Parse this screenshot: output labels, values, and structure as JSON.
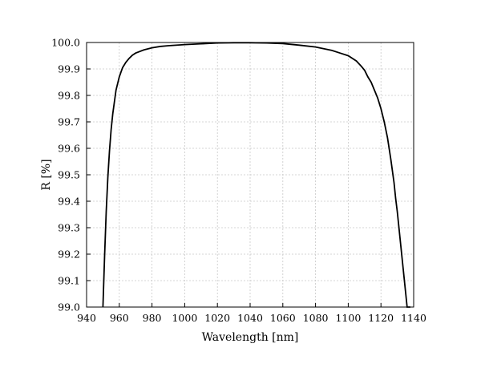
{
  "chart_data": {
    "type": "line",
    "title": "",
    "xlabel": "Wavelength [nm]",
    "ylabel": "R [%]",
    "xlim": [
      940,
      1140
    ],
    "ylim": [
      99.0,
      100.0
    ],
    "grid": true,
    "x_ticks": [
      "940",
      "960",
      "980",
      "1000",
      "1020",
      "1040",
      "1060",
      "1080",
      "1100",
      "1120",
      "1140"
    ],
    "y_ticks": [
      "99.0",
      "99.1",
      "99.2",
      "99.3",
      "99.4",
      "99.5",
      "99.6",
      "99.7",
      "99.8",
      "99.9",
      "100.0"
    ],
    "series": [
      {
        "x": [
          950,
          951,
          952,
          953,
          954,
          955,
          956,
          958,
          960,
          962,
          964,
          966,
          968,
          970,
          975,
          980,
          985,
          990,
          1000,
          1010,
          1020,
          1030,
          1040,
          1050,
          1060,
          1070,
          1080,
          1090,
          1095,
          1100,
          1105,
          1108,
          1110,
          1112,
          1114,
          1116,
          1118,
          1120,
          1122,
          1124,
          1126,
          1128,
          1129,
          1130,
          1131,
          1132,
          1133,
          1134,
          1135,
          1136,
          1137,
          1138
        ],
        "y": [
          99.0,
          99.19,
          99.36,
          99.49,
          99.59,
          99.67,
          99.73,
          99.82,
          99.87,
          99.905,
          99.925,
          99.94,
          99.952,
          99.96,
          99.972,
          99.98,
          99.985,
          99.988,
          99.992,
          99.995,
          99.998,
          99.999,
          99.999,
          99.998,
          99.996,
          99.99,
          99.983,
          99.97,
          99.96,
          99.95,
          99.93,
          99.91,
          99.895,
          99.87,
          99.85,
          99.82,
          99.79,
          99.75,
          99.7,
          99.64,
          99.56,
          99.47,
          99.41,
          99.36,
          99.3,
          99.24,
          99.18,
          99.12,
          99.06,
          99.0,
          99.0,
          99.0
        ]
      }
    ]
  }
}
